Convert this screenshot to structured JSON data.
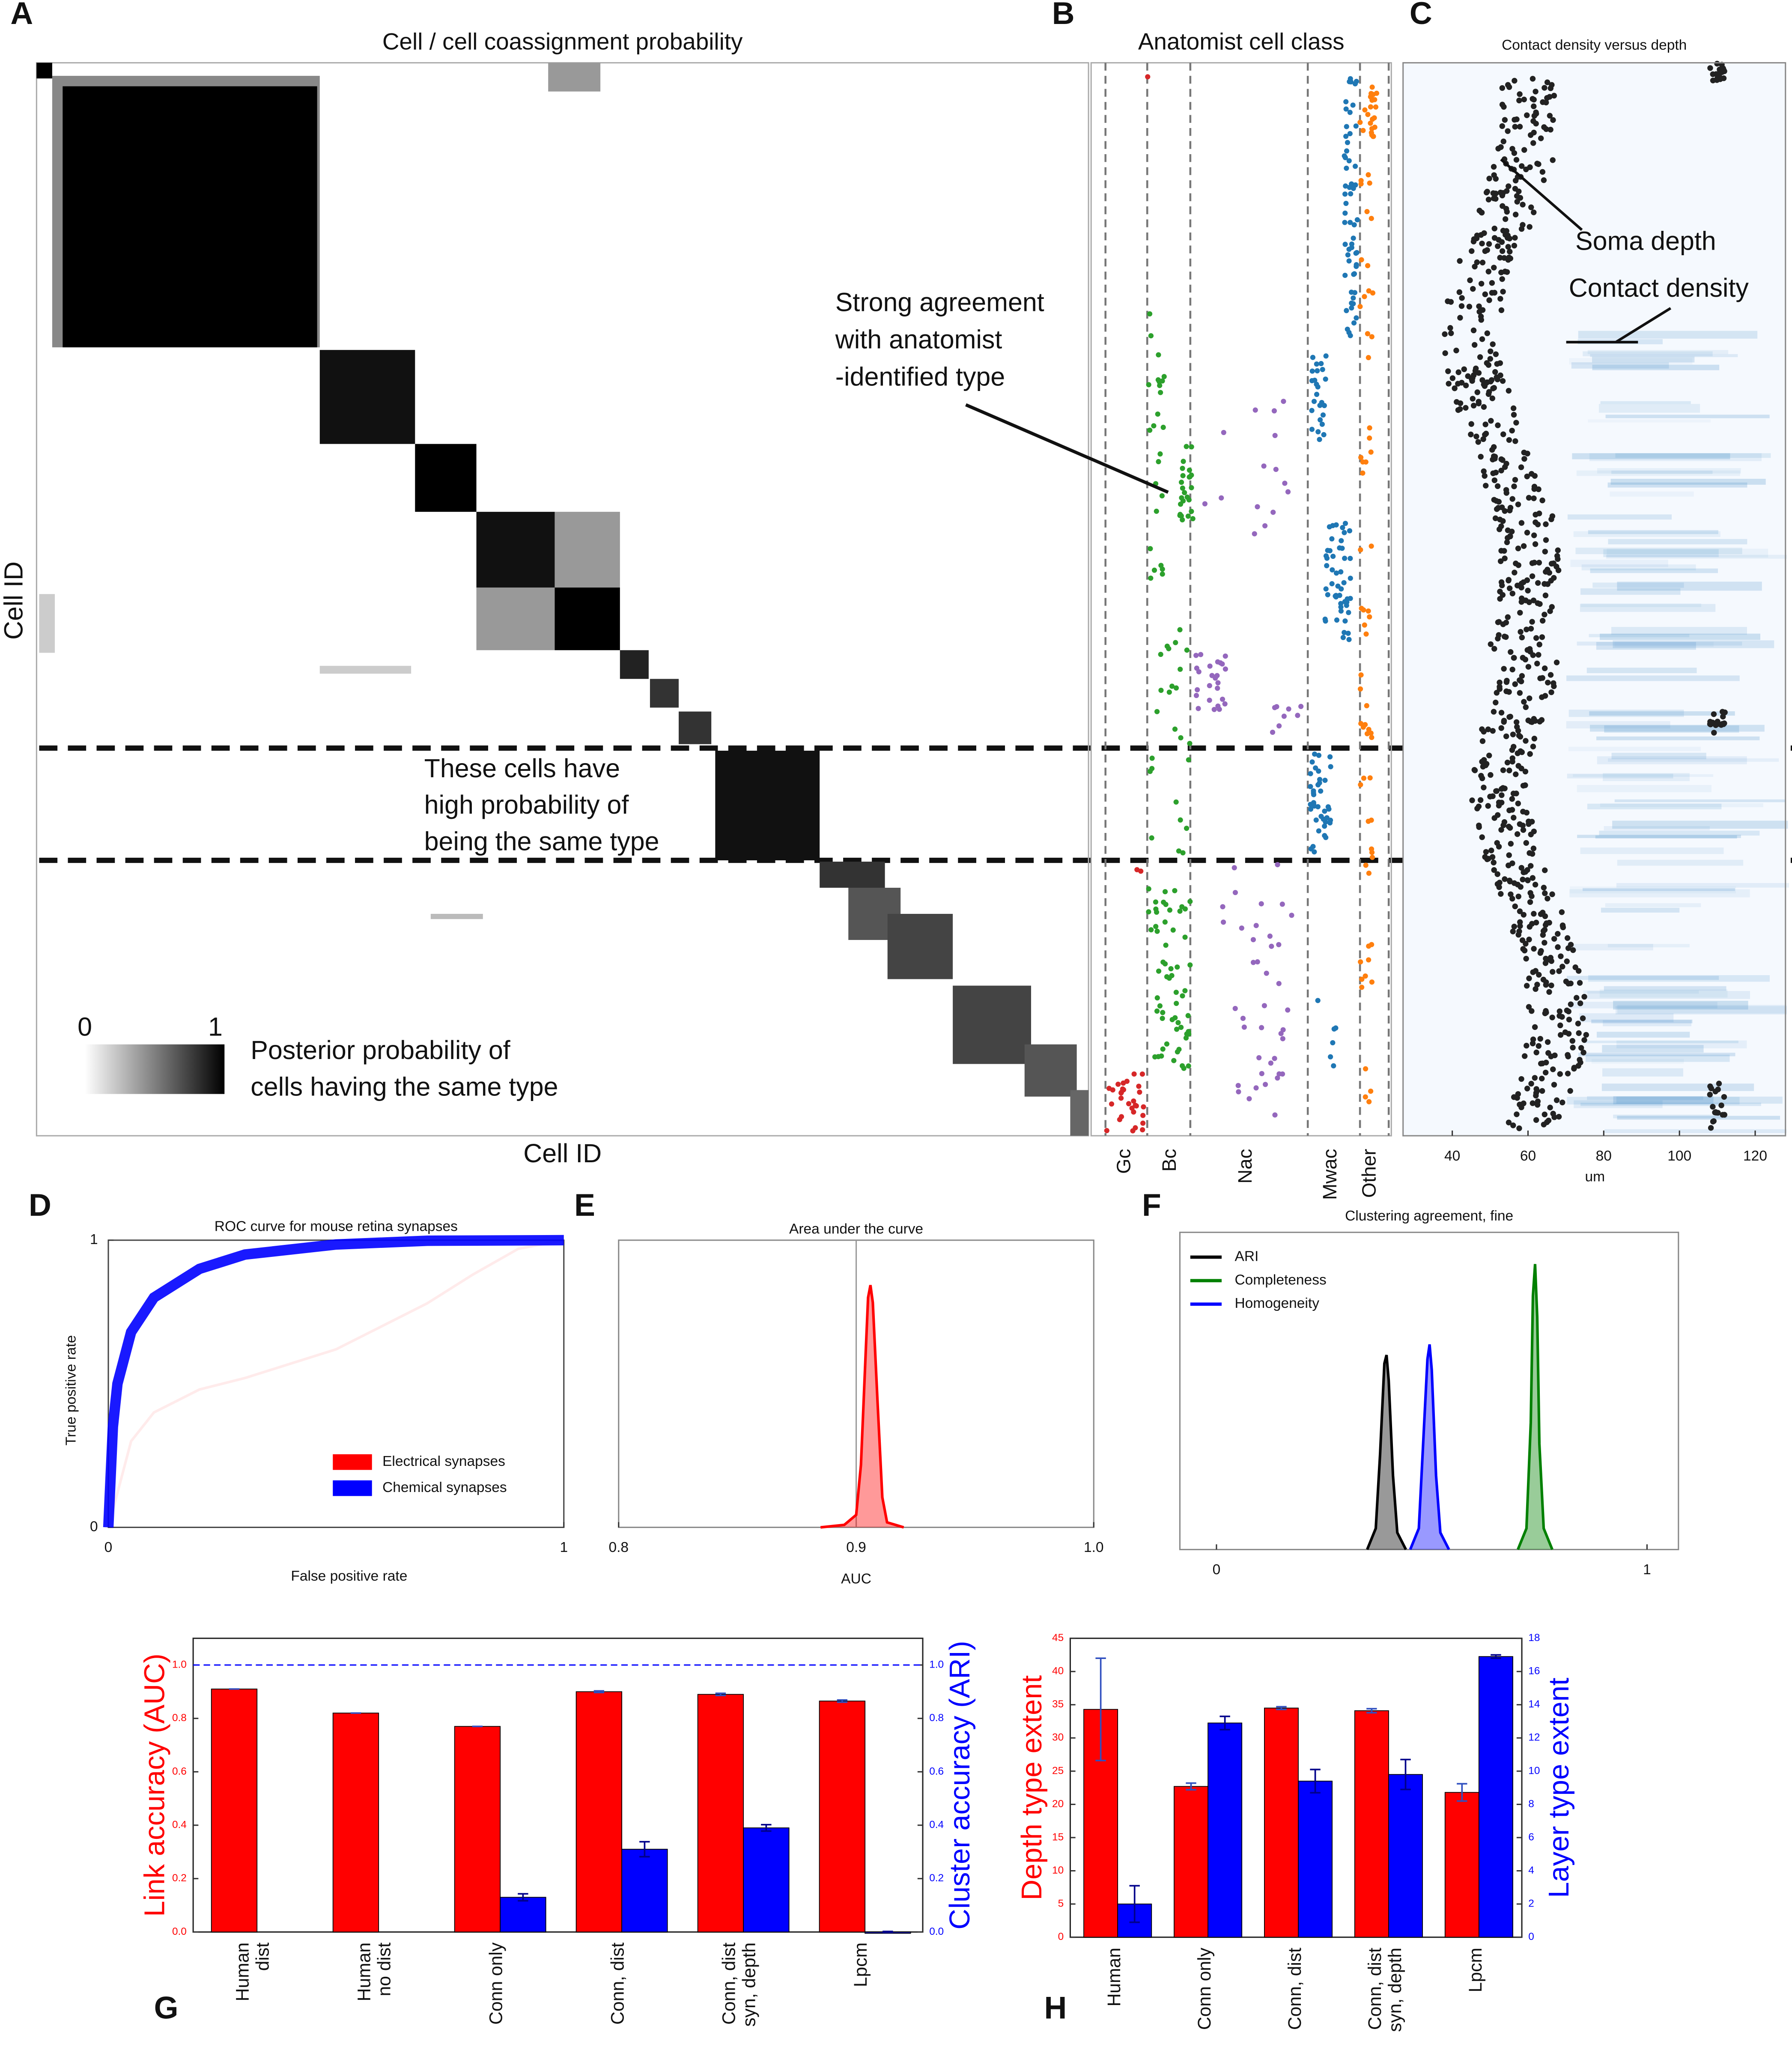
{
  "chart_data": [
    {
      "type": "heatmap",
      "panel": "A",
      "title": "Cell / cell coassignment probability",
      "xlabel": "Cell ID",
      "ylabel": "Cell ID",
      "colorbar_ticks": [
        0,
        1
      ],
      "colorbar_label": [
        "Posterior probability of",
        "cells having the same type"
      ],
      "annotation": [
        "These cells have",
        "high probability of",
        "being the same type"
      ]
    },
    {
      "type": "strip",
      "panel": "B",
      "title": "Anatomist cell class",
      "categories": [
        "Gc",
        "Bc",
        "Nac",
        "Mwac",
        "Other"
      ],
      "colors": [
        "#d62728",
        "#2ca02c",
        "#9467bd",
        "#1f77b4",
        "#ff7f0e"
      ],
      "annotation": [
        "Strong agreement",
        "with anatomist",
        "-identified type"
      ]
    },
    {
      "type": "density-scatter",
      "panel": "C",
      "title": "Contact density versus depth",
      "xlabel": "um",
      "xlim": [
        27,
        128
      ],
      "xticks": [
        40,
        60,
        80,
        100,
        120
      ],
      "annotations": [
        "Soma depth",
        "Contact density"
      ]
    },
    {
      "type": "line",
      "panel": "D",
      "title": "ROC  curve for mouse retina synapses",
      "xlabel": "False positive rate",
      "ylabel": "True positive rate",
      "xlim": [
        0,
        1
      ],
      "ylim": [
        0,
        1
      ],
      "xticks": [
        0,
        1
      ],
      "yticks": [
        0,
        1
      ],
      "legend": "lower right",
      "series": [
        {
          "name": "Electrical synapses",
          "color": "#ff0000",
          "x": [
            0,
            0.05,
            0.1,
            0.2,
            0.3,
            0.5,
            0.7,
            0.8,
            0.9,
            1
          ],
          "values": [
            0,
            0.3,
            0.4,
            0.48,
            0.52,
            0.62,
            0.78,
            0.88,
            0.97,
            1
          ]
        },
        {
          "name": "Chemical synapses",
          "color": "#0000ff",
          "x": [
            0,
            0.01,
            0.02,
            0.05,
            0.1,
            0.2,
            0.3,
            0.5,
            0.7,
            1
          ],
          "values": [
            0,
            0.35,
            0.5,
            0.68,
            0.8,
            0.9,
            0.95,
            0.985,
            0.998,
            1
          ]
        }
      ]
    },
    {
      "type": "area",
      "panel": "E",
      "title": "Area under the curve",
      "xlabel": "AUC",
      "xlim": [
        0.8,
        1
      ],
      "xticks": [
        0.8,
        0.9,
        {
          "value": 1,
          "label": "1.0"
        }
      ],
      "ylim": [
        0,
        1.15
      ],
      "reference_line": 0.9,
      "series": [
        {
          "color": "#ff0000",
          "x": [
            0.885,
            0.895,
            0.9,
            0.902,
            0.904,
            0.905,
            0.906,
            0.907,
            0.909,
            0.911,
            0.913,
            0.92
          ],
          "values": [
            0,
            0.01,
            0.05,
            0.25,
            0.7,
            0.92,
            0.97,
            0.9,
            0.5,
            0.12,
            0.02,
            0
          ]
        }
      ]
    },
    {
      "type": "area",
      "panel": "F",
      "title": "Clustering agreement, fine",
      "xlim": [
        -0.085,
        1.073
      ],
      "xticks": [
        0,
        1
      ],
      "ylim": [
        0,
        1.5
      ],
      "legend": "upper left",
      "series": [
        {
          "name": "ARI",
          "color": "#000000",
          "x": [
            0.35,
            0.37,
            0.38,
            0.39,
            0.395,
            0.4,
            0.41,
            0.42,
            0.44
          ],
          "values": [
            0,
            0.1,
            0.45,
            0.88,
            0.92,
            0.8,
            0.35,
            0.08,
            0
          ]
        },
        {
          "name": "Completeness",
          "color": "#008000",
          "x": [
            0.7,
            0.72,
            0.73,
            0.735,
            0.74,
            0.745,
            0.75,
            0.76,
            0.78
          ],
          "values": [
            0,
            0.1,
            0.6,
            1.2,
            1.35,
            1.1,
            0.5,
            0.1,
            0
          ]
        },
        {
          "name": "Homogeneity",
          "color": "#0000ff",
          "x": [
            0.45,
            0.47,
            0.48,
            0.49,
            0.495,
            0.5,
            0.51,
            0.52,
            0.54
          ],
          "values": [
            0,
            0.1,
            0.5,
            0.9,
            0.97,
            0.85,
            0.35,
            0.08,
            0
          ]
        }
      ]
    },
    {
      "type": "bar",
      "panel": "G",
      "ylabel": "Link accuracy (AUC)",
      "y2label": "Cluster accuracy (ARI)",
      "categories": [
        "Human\ndist",
        "Human\nno dist",
        "Conn only",
        "Conn, dist",
        "Conn, dist\nsyn, depth",
        "Lpcm"
      ],
      "ylim": [
        0,
        1.1
      ],
      "yticks": [
        {
          "value": 0,
          "label": "0.0"
        },
        0.2,
        0.4,
        0.6,
        0.8,
        {
          "value": 1,
          "label": "1.0"
        }
      ],
      "y2lim": [
        0,
        1.1
      ],
      "y2ticks": [
        {
          "value": 0,
          "label": "0.0"
        },
        0.2,
        0.4,
        0.6,
        0.8,
        {
          "value": 1,
          "label": "1.0"
        }
      ],
      "reference_line": {
        "value": 1,
        "axis": "y2"
      },
      "series": [
        {
          "color": "#ff0000",
          "values": [
            0.91,
            0.82,
            0.77,
            0.9,
            0.89,
            0.865
          ],
          "errors": [
            0,
            0,
            0,
            0.003,
            0.004,
            0.004
          ]
        },
        {
          "color": "#0000ff",
          "axis": "y2",
          "values": [
            null,
            null,
            0.13,
            0.31,
            0.39,
            0
          ],
          "errors": [
            null,
            null,
            0.013,
            0.028,
            0.012,
            0.002
          ]
        }
      ]
    },
    {
      "type": "bar",
      "panel": "H",
      "ylabel": "Depth type extent",
      "y2label": "Layer type extent",
      "categories": [
        "Human",
        "Conn only",
        "Conn, dist",
        "Conn, dist\nsyn, depth",
        "Lpcm"
      ],
      "ylim": [
        0,
        45
      ],
      "yticks": [
        0,
        5,
        10,
        15,
        20,
        25,
        30,
        35,
        40,
        45
      ],
      "y2lim": [
        0,
        18
      ],
      "y2ticks": [
        0,
        2,
        4,
        6,
        8,
        10,
        12,
        14,
        16,
        18
      ],
      "series": [
        {
          "color": "#ff0000",
          "values": [
            34.3,
            22.7,
            34.5,
            34.1,
            21.8
          ],
          "errors": [
            7.7,
            0.5,
            0.2,
            0.3,
            1.3
          ]
        },
        {
          "color": "#0000ff",
          "axis": "y2",
          "values": [
            2,
            12.9,
            9.4,
            9.8,
            16.9
          ],
          "errors": [
            1.1,
            0.4,
            0.7,
            0.9,
            0.1
          ]
        }
      ]
    }
  ]
}
